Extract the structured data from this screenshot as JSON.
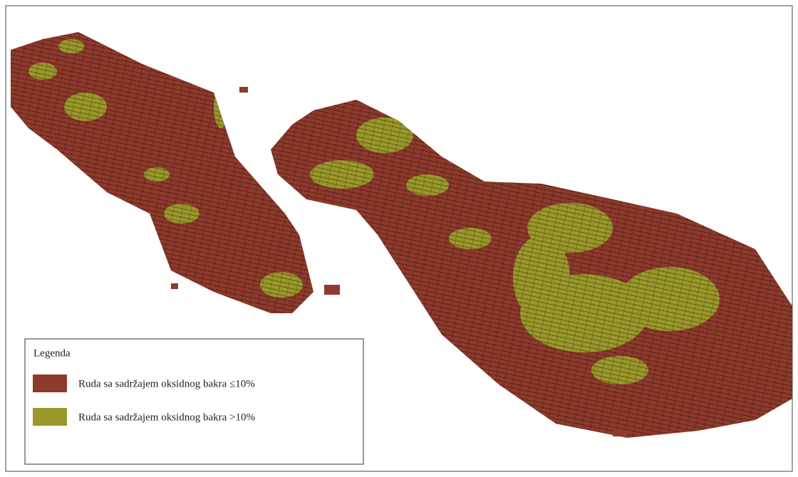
{
  "legend": {
    "title": "Legenda",
    "items": [
      {
        "label": "Ruda sa sadržajem oksidnog bakra ≤10%",
        "color": "#8e3a2c"
      },
      {
        "label": "Ruda sa sadržajem oksidnog bakra >10%",
        "color": "#9a982a"
      }
    ]
  }
}
